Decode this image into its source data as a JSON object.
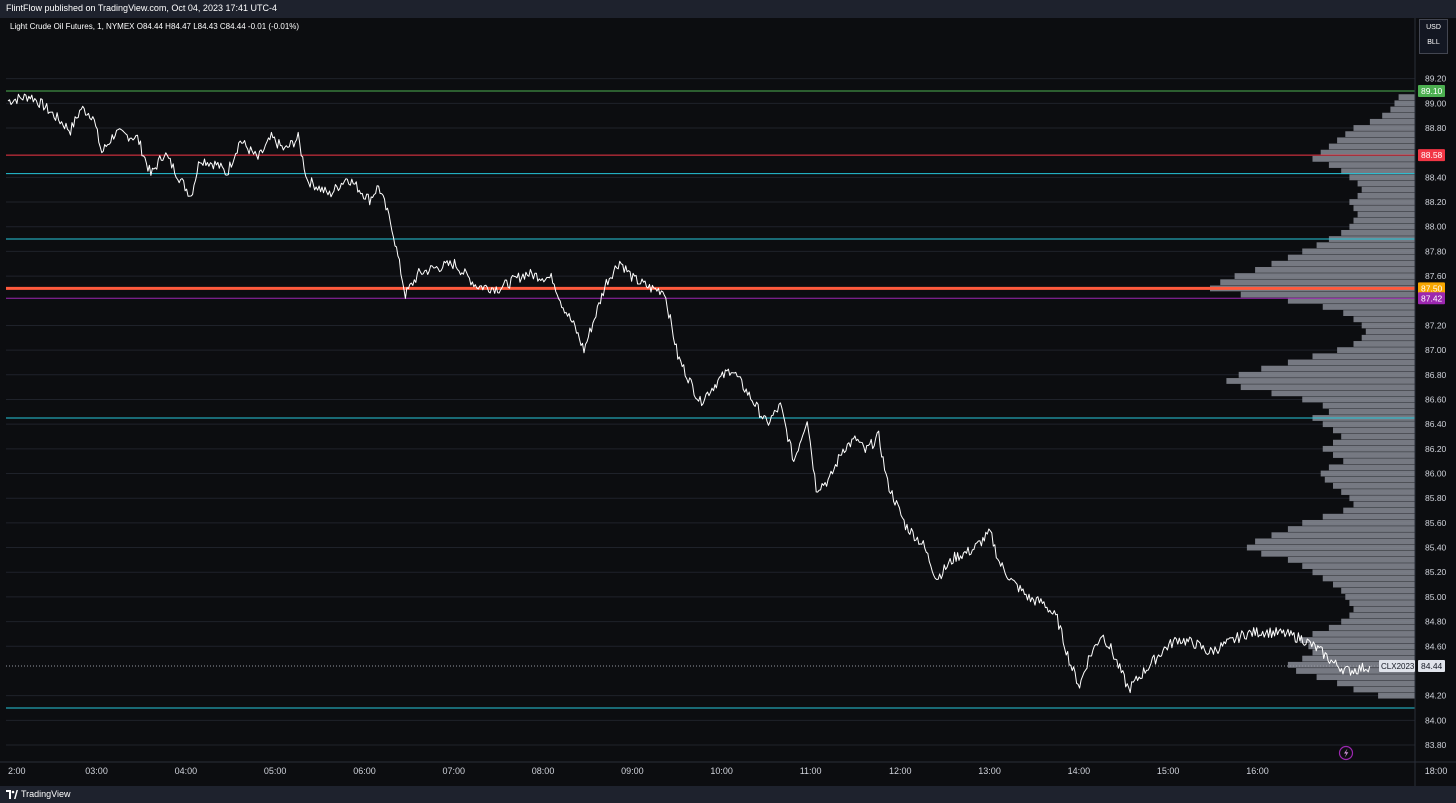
{
  "header": {
    "publisher_text": "FlintFlow published on TradingView.com, Oct 04, 2023 17:41 UTC-4"
  },
  "legend": {
    "text": "Light Crude Oil Futures, 1, NYMEX  O84.44  H84.47  L84.43  C84.44  -0.01 (-0.01%)"
  },
  "unit_box": {
    "currency": "USD",
    "unit": "BLL"
  },
  "footer": {
    "brand": "TradingView"
  },
  "colors": {
    "background": "#0c0d10",
    "candles": "#ffffff",
    "profile": "#8a8d96",
    "cyan_line": "#26c6da",
    "axis_text": "#d1d4dc"
  },
  "chart_data": {
    "type": "line",
    "symbol": "CLX2023",
    "last_price": 84.44,
    "last_price_label": "84.44",
    "ylim": [
      83.72,
      89.42
    ],
    "x_ticks": [
      {
        "t": 2,
        "label": "2:00"
      },
      {
        "t": 3,
        "label": "03:00"
      },
      {
        "t": 4,
        "label": "04:00"
      },
      {
        "t": 5,
        "label": "05:00"
      },
      {
        "t": 6,
        "label": "06:00"
      },
      {
        "t": 7,
        "label": "07:00"
      },
      {
        "t": 8,
        "label": "08:00"
      },
      {
        "t": 9,
        "label": "09:00"
      },
      {
        "t": 10,
        "label": "10:00"
      },
      {
        "t": 11,
        "label": "11:00"
      },
      {
        "t": 12,
        "label": "12:00"
      },
      {
        "t": 13,
        "label": "13:00"
      },
      {
        "t": 14,
        "label": "14:00"
      },
      {
        "t": 15,
        "label": "15:00"
      },
      {
        "t": 16,
        "label": "16:00"
      },
      {
        "t": 18,
        "label": "18:00"
      }
    ],
    "y_ticks": [
      {
        "v": 89.2,
        "label": "89.20"
      },
      {
        "v": 89.0,
        "label": "89.00"
      },
      {
        "v": 88.8,
        "label": "88.80"
      },
      {
        "v": 88.4,
        "label": "88.40"
      },
      {
        "v": 88.2,
        "label": "88.20"
      },
      {
        "v": 88.0,
        "label": "88.00"
      },
      {
        "v": 87.8,
        "label": "87.80"
      },
      {
        "v": 87.6,
        "label": "87.60"
      },
      {
        "v": 87.2,
        "label": "87.20"
      },
      {
        "v": 87.0,
        "label": "87.00"
      },
      {
        "v": 86.8,
        "label": "86.80"
      },
      {
        "v": 86.6,
        "label": "86.60"
      },
      {
        "v": 86.4,
        "label": "86.40"
      },
      {
        "v": 86.2,
        "label": "86.20"
      },
      {
        "v": 86.0,
        "label": "86.00"
      },
      {
        "v": 85.8,
        "label": "85.80"
      },
      {
        "v": 85.6,
        "label": "85.60"
      },
      {
        "v": 85.4,
        "label": "85.40"
      },
      {
        "v": 85.2,
        "label": "85.20"
      },
      {
        "v": 85.0,
        "label": "85.00"
      },
      {
        "v": 84.8,
        "label": "84.80"
      },
      {
        "v": 84.6,
        "label": "84.60"
      },
      {
        "v": 84.2,
        "label": "84.20"
      },
      {
        "v": 84.0,
        "label": "84.00"
      },
      {
        "v": 83.8,
        "label": "83.80"
      }
    ],
    "price_path": [
      [
        2.0,
        89.02
      ],
      [
        2.25,
        89.06
      ],
      [
        2.4,
        88.98
      ],
      [
        2.7,
        88.78
      ],
      [
        2.82,
        88.96
      ],
      [
        2.95,
        88.9
      ],
      [
        3.05,
        88.6
      ],
      [
        3.2,
        88.76
      ],
      [
        3.45,
        88.72
      ],
      [
        3.6,
        88.42
      ],
      [
        3.75,
        88.6
      ],
      [
        3.95,
        88.36
      ],
      [
        4.05,
        88.25
      ],
      [
        4.15,
        88.55
      ],
      [
        4.35,
        88.5
      ],
      [
        4.45,
        88.43
      ],
      [
        4.6,
        88.7
      ],
      [
        4.8,
        88.55
      ],
      [
        4.95,
        88.72
      ],
      [
        5.1,
        88.62
      ],
      [
        5.25,
        88.72
      ],
      [
        5.35,
        88.38
      ],
      [
        5.6,
        88.26
      ],
      [
        5.8,
        88.4
      ],
      [
        6.05,
        88.22
      ],
      [
        6.15,
        88.33
      ],
      [
        6.3,
        88.0
      ],
      [
        6.45,
        87.45
      ],
      [
        6.6,
        87.62
      ],
      [
        6.75,
        87.66
      ],
      [
        7.0,
        87.7
      ],
      [
        7.25,
        87.52
      ],
      [
        7.5,
        87.5
      ],
      [
        7.8,
        87.62
      ],
      [
        8.1,
        87.58
      ],
      [
        8.2,
        87.38
      ],
      [
        8.35,
        87.18
      ],
      [
        8.45,
        87.0
      ],
      [
        8.55,
        87.22
      ],
      [
        8.7,
        87.55
      ],
      [
        8.85,
        87.72
      ],
      [
        9.0,
        87.58
      ],
      [
        9.2,
        87.5
      ],
      [
        9.35,
        87.48
      ],
      [
        9.5,
        86.95
      ],
      [
        9.75,
        86.58
      ],
      [
        9.95,
        86.75
      ],
      [
        10.1,
        86.85
      ],
      [
        10.35,
        86.58
      ],
      [
        10.5,
        86.4
      ],
      [
        10.65,
        86.55
      ],
      [
        10.8,
        86.1
      ],
      [
        10.95,
        86.45
      ],
      [
        11.05,
        85.88
      ],
      [
        11.2,
        85.95
      ],
      [
        11.35,
        86.2
      ],
      [
        11.5,
        86.28
      ],
      [
        11.6,
        86.18
      ],
      [
        11.75,
        86.3
      ],
      [
        11.85,
        85.92
      ],
      [
        12.05,
        85.58
      ],
      [
        12.25,
        85.42
      ],
      [
        12.4,
        85.15
      ],
      [
        12.6,
        85.32
      ],
      [
        12.8,
        85.38
      ],
      [
        13.0,
        85.52
      ],
      [
        13.1,
        85.28
      ],
      [
        13.25,
        85.12
      ],
      [
        13.45,
        84.98
      ],
      [
        13.6,
        84.95
      ],
      [
        13.75,
        84.82
      ],
      [
        13.9,
        84.45
      ],
      [
        14.0,
        84.28
      ],
      [
        14.1,
        84.5
      ],
      [
        14.25,
        84.7
      ],
      [
        14.35,
        84.58
      ],
      [
        14.55,
        84.25
      ],
      [
        14.75,
        84.42
      ],
      [
        14.95,
        84.58
      ],
      [
        15.1,
        84.66
      ],
      [
        15.3,
        84.62
      ],
      [
        15.45,
        84.55
      ],
      [
        15.65,
        84.62
      ],
      [
        15.85,
        84.7
      ],
      [
        16.05,
        84.72
      ],
      [
        16.3,
        84.7
      ],
      [
        16.5,
        84.66
      ],
      [
        16.7,
        84.56
      ],
      [
        16.85,
        84.46
      ],
      [
        17.0,
        84.4
      ],
      [
        17.15,
        84.42
      ],
      [
        17.25,
        84.44
      ]
    ],
    "price_lines": [
      {
        "value": 89.1,
        "color": "#4caf50",
        "width": 1,
        "label": "89.10"
      },
      {
        "value": 88.58,
        "color": "#f23645",
        "width": 1,
        "label": "88.58"
      },
      {
        "value": 88.43,
        "color": "#26c6da",
        "width": 1,
        "label": ""
      },
      {
        "value": 87.9,
        "color": "#26c6da",
        "width": 1,
        "label": ""
      },
      {
        "value": 87.5,
        "color": "#ff5a3d",
        "width": 3,
        "label": "87.50",
        "label_color": "#f7a600"
      },
      {
        "value": 87.42,
        "color": "#9c27b0",
        "width": 1,
        "label": "87.42"
      },
      {
        "value": 86.45,
        "color": "#26c6da",
        "width": 1,
        "label": ""
      },
      {
        "value": 84.1,
        "color": "#26c6da",
        "width": 1,
        "label": ""
      }
    ],
    "volume_profile": [
      [
        89.05,
        0.08
      ],
      [
        89.0,
        0.1
      ],
      [
        88.95,
        0.12
      ],
      [
        88.9,
        0.16
      ],
      [
        88.85,
        0.22
      ],
      [
        88.8,
        0.3
      ],
      [
        88.75,
        0.34
      ],
      [
        88.7,
        0.38
      ],
      [
        88.65,
        0.42
      ],
      [
        88.6,
        0.46
      ],
      [
        88.55,
        0.5
      ],
      [
        88.5,
        0.42
      ],
      [
        88.45,
        0.36
      ],
      [
        88.4,
        0.32
      ],
      [
        88.35,
        0.28
      ],
      [
        88.3,
        0.26
      ],
      [
        88.25,
        0.28
      ],
      [
        88.2,
        0.32
      ],
      [
        88.15,
        0.3
      ],
      [
        88.1,
        0.28
      ],
      [
        88.05,
        0.3
      ],
      [
        88.0,
        0.32
      ],
      [
        87.95,
        0.36
      ],
      [
        87.9,
        0.42
      ],
      [
        87.85,
        0.48
      ],
      [
        87.8,
        0.55
      ],
      [
        87.75,
        0.62
      ],
      [
        87.7,
        0.7
      ],
      [
        87.65,
        0.78
      ],
      [
        87.6,
        0.88
      ],
      [
        87.55,
        0.95
      ],
      [
        87.5,
        1.0
      ],
      [
        87.45,
        0.85
      ],
      [
        87.4,
        0.62
      ],
      [
        87.35,
        0.45
      ],
      [
        87.3,
        0.35
      ],
      [
        87.25,
        0.3
      ],
      [
        87.2,
        0.26
      ],
      [
        87.15,
        0.24
      ],
      [
        87.1,
        0.26
      ],
      [
        87.05,
        0.3
      ],
      [
        87.0,
        0.38
      ],
      [
        86.95,
        0.5
      ],
      [
        86.9,
        0.62
      ],
      [
        86.85,
        0.75
      ],
      [
        86.8,
        0.86
      ],
      [
        86.75,
        0.92
      ],
      [
        86.7,
        0.85
      ],
      [
        86.65,
        0.7
      ],
      [
        86.6,
        0.55
      ],
      [
        86.55,
        0.45
      ],
      [
        86.5,
        0.42
      ],
      [
        86.45,
        0.5
      ],
      [
        86.4,
        0.45
      ],
      [
        86.35,
        0.4
      ],
      [
        86.3,
        0.36
      ],
      [
        86.25,
        0.4
      ],
      [
        86.2,
        0.45
      ],
      [
        86.15,
        0.4
      ],
      [
        86.1,
        0.35
      ],
      [
        86.05,
        0.42
      ],
      [
        86.0,
        0.46
      ],
      [
        85.95,
        0.44
      ],
      [
        85.9,
        0.4
      ],
      [
        85.85,
        0.36
      ],
      [
        85.8,
        0.32
      ],
      [
        85.75,
        0.3
      ],
      [
        85.7,
        0.35
      ],
      [
        85.65,
        0.45
      ],
      [
        85.6,
        0.55
      ],
      [
        85.55,
        0.62
      ],
      [
        85.5,
        0.7
      ],
      [
        85.45,
        0.78
      ],
      [
        85.4,
        0.82
      ],
      [
        85.35,
        0.75
      ],
      [
        85.3,
        0.62
      ],
      [
        85.25,
        0.55
      ],
      [
        85.2,
        0.5
      ],
      [
        85.15,
        0.45
      ],
      [
        85.1,
        0.4
      ],
      [
        85.05,
        0.36
      ],
      [
        85.0,
        0.34
      ],
      [
        84.95,
        0.32
      ],
      [
        84.9,
        0.3
      ],
      [
        84.85,
        0.32
      ],
      [
        84.8,
        0.36
      ],
      [
        84.75,
        0.42
      ],
      [
        84.7,
        0.5
      ],
      [
        84.65,
        0.56
      ],
      [
        84.6,
        0.52
      ],
      [
        84.55,
        0.5
      ],
      [
        84.5,
        0.55
      ],
      [
        84.45,
        0.62
      ],
      [
        84.4,
        0.58
      ],
      [
        84.35,
        0.48
      ],
      [
        84.3,
        0.38
      ],
      [
        84.25,
        0.3
      ],
      [
        84.2,
        0.18
      ]
    ]
  }
}
